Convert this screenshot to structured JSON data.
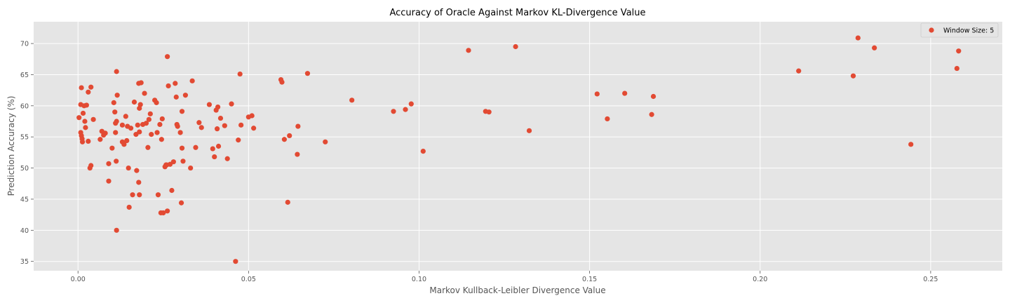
{
  "chart_data": {
    "type": "scatter",
    "title": "Accuracy of Oracle Against Markov KL-Divergence Value",
    "xlabel": "Markov Kullback-Leibler Divergence Value",
    "ylabel": "Prediction Accuracy (%)",
    "xlim": [
      -0.013,
      0.271
    ],
    "ylim": [
      33.5,
      73.5
    ],
    "xticks": [
      0.0,
      0.05,
      0.1,
      0.15,
      0.2,
      0.25
    ],
    "xtick_labels": [
      "0.00",
      "0.05",
      "0.10",
      "0.15",
      "0.20",
      "0.25"
    ],
    "yticks": [
      35,
      40,
      45,
      50,
      55,
      60,
      65,
      70
    ],
    "ytick_labels": [
      "35",
      "40",
      "45",
      "50",
      "55",
      "60",
      "65",
      "70"
    ],
    "grid": true,
    "legend_position": "top-right",
    "series": [
      {
        "name": "Window Size: 5",
        "color": "#e24a33",
        "points": [
          [
            0.0003,
            58.1
          ],
          [
            0.0008,
            60.2
          ],
          [
            0.001,
            62.9
          ],
          [
            0.0008,
            55.7
          ],
          [
            0.001,
            55.2
          ],
          [
            0.0012,
            54.7
          ],
          [
            0.0013,
            54.2
          ],
          [
            0.0015,
            58.8
          ],
          [
            0.0018,
            60.0
          ],
          [
            0.002,
            57.5
          ],
          [
            0.0022,
            56.5
          ],
          [
            0.0025,
            60.1
          ],
          [
            0.003,
            62.2
          ],
          [
            0.003,
            54.3
          ],
          [
            0.0035,
            50.0
          ],
          [
            0.0038,
            50.4
          ],
          [
            0.0038,
            63.0
          ],
          [
            0.0045,
            57.8
          ],
          [
            0.0065,
            54.6
          ],
          [
            0.007,
            55.9
          ],
          [
            0.0075,
            55.3
          ],
          [
            0.008,
            55.6
          ],
          [
            0.009,
            50.7
          ],
          [
            0.009,
            47.9
          ],
          [
            0.01,
            53.2
          ],
          [
            0.0105,
            60.5
          ],
          [
            0.0108,
            59.0
          ],
          [
            0.011,
            55.7
          ],
          [
            0.011,
            57.2
          ],
          [
            0.0112,
            51.1
          ],
          [
            0.0113,
            57.5
          ],
          [
            0.0113,
            65.5
          ],
          [
            0.0115,
            61.7
          ],
          [
            0.0113,
            40.0
          ],
          [
            0.013,
            54.2
          ],
          [
            0.013,
            56.9
          ],
          [
            0.0135,
            53.8
          ],
          [
            0.014,
            58.3
          ],
          [
            0.0143,
            54.4
          ],
          [
            0.0145,
            56.7
          ],
          [
            0.0148,
            50.0
          ],
          [
            0.015,
            43.7
          ],
          [
            0.0155,
            56.4
          ],
          [
            0.016,
            45.7
          ],
          [
            0.0165,
            60.6
          ],
          [
            0.017,
            55.4
          ],
          [
            0.0172,
            49.6
          ],
          [
            0.0175,
            56.9
          ],
          [
            0.0178,
            63.6
          ],
          [
            0.0178,
            47.7
          ],
          [
            0.018,
            59.6
          ],
          [
            0.018,
            45.7
          ],
          [
            0.018,
            55.8
          ],
          [
            0.0183,
            60.2
          ],
          [
            0.0185,
            63.7
          ],
          [
            0.019,
            57.0
          ],
          [
            0.0195,
            62.0
          ],
          [
            0.02,
            57.2
          ],
          [
            0.0205,
            53.3
          ],
          [
            0.0208,
            57.8
          ],
          [
            0.0212,
            58.7
          ],
          [
            0.0215,
            55.4
          ],
          [
            0.0225,
            60.9
          ],
          [
            0.023,
            60.5
          ],
          [
            0.0232,
            55.7
          ],
          [
            0.0235,
            45.7
          ],
          [
            0.024,
            57.0
          ],
          [
            0.0243,
            42.8
          ],
          [
            0.0245,
            54.6
          ],
          [
            0.0247,
            57.9
          ],
          [
            0.025,
            42.8
          ],
          [
            0.0255,
            50.2
          ],
          [
            0.0258,
            50.5
          ],
          [
            0.026,
            50.5
          ],
          [
            0.0262,
            43.1
          ],
          [
            0.0262,
            67.9
          ],
          [
            0.0265,
            63.2
          ],
          [
            0.027,
            50.6
          ],
          [
            0.0275,
            46.4
          ],
          [
            0.028,
            51.0
          ],
          [
            0.0285,
            63.6
          ],
          [
            0.0288,
            61.4
          ],
          [
            0.029,
            57.0
          ],
          [
            0.0292,
            56.7
          ],
          [
            0.03,
            55.7
          ],
          [
            0.0303,
            44.4
          ],
          [
            0.0305,
            59.1
          ],
          [
            0.0305,
            53.2
          ],
          [
            0.0308,
            51.1
          ],
          [
            0.0315,
            61.7
          ],
          [
            0.033,
            50.0
          ],
          [
            0.0335,
            64.0
          ],
          [
            0.0345,
            53.3
          ],
          [
            0.0355,
            57.3
          ],
          [
            0.0362,
            56.5
          ],
          [
            0.0385,
            60.2
          ],
          [
            0.0395,
            53.1
          ],
          [
            0.04,
            51.8
          ],
          [
            0.0405,
            59.3
          ],
          [
            0.0408,
            56.3
          ],
          [
            0.041,
            59.8
          ],
          [
            0.0412,
            53.5
          ],
          [
            0.0418,
            58.0
          ],
          [
            0.043,
            56.8
          ],
          [
            0.0438,
            51.5
          ],
          [
            0.045,
            60.3
          ],
          [
            0.0462,
            35.0
          ],
          [
            0.047,
            54.5
          ],
          [
            0.0475,
            65.1
          ],
          [
            0.0478,
            56.9
          ],
          [
            0.05,
            58.2
          ],
          [
            0.051,
            58.4
          ],
          [
            0.0515,
            56.4
          ],
          [
            0.0595,
            64.2
          ],
          [
            0.0598,
            63.8
          ],
          [
            0.0605,
            54.6
          ],
          [
            0.0615,
            44.5
          ],
          [
            0.062,
            55.2
          ],
          [
            0.0643,
            52.2
          ],
          [
            0.0645,
            56.7
          ],
          [
            0.0673,
            65.2
          ],
          [
            0.0725,
            54.2
          ],
          [
            0.0803,
            60.9
          ],
          [
            0.0925,
            59.1
          ],
          [
            0.096,
            59.4
          ],
          [
            0.0977,
            60.3
          ],
          [
            0.1012,
            52.7
          ],
          [
            0.1145,
            68.9
          ],
          [
            0.1195,
            59.1
          ],
          [
            0.1205,
            59.0
          ],
          [
            0.1283,
            69.5
          ],
          [
            0.1323,
            56.0
          ],
          [
            0.1522,
            61.9
          ],
          [
            0.1552,
            57.9
          ],
          [
            0.1603,
            62.0
          ],
          [
            0.1682,
            58.6
          ],
          [
            0.1687,
            61.5
          ],
          [
            0.2113,
            65.6
          ],
          [
            0.2273,
            64.8
          ],
          [
            0.2287,
            70.9
          ],
          [
            0.2335,
            69.3
          ],
          [
            0.2442,
            53.8
          ],
          [
            0.2577,
            66.0
          ],
          [
            0.2582,
            68.8
          ]
        ]
      }
    ]
  }
}
